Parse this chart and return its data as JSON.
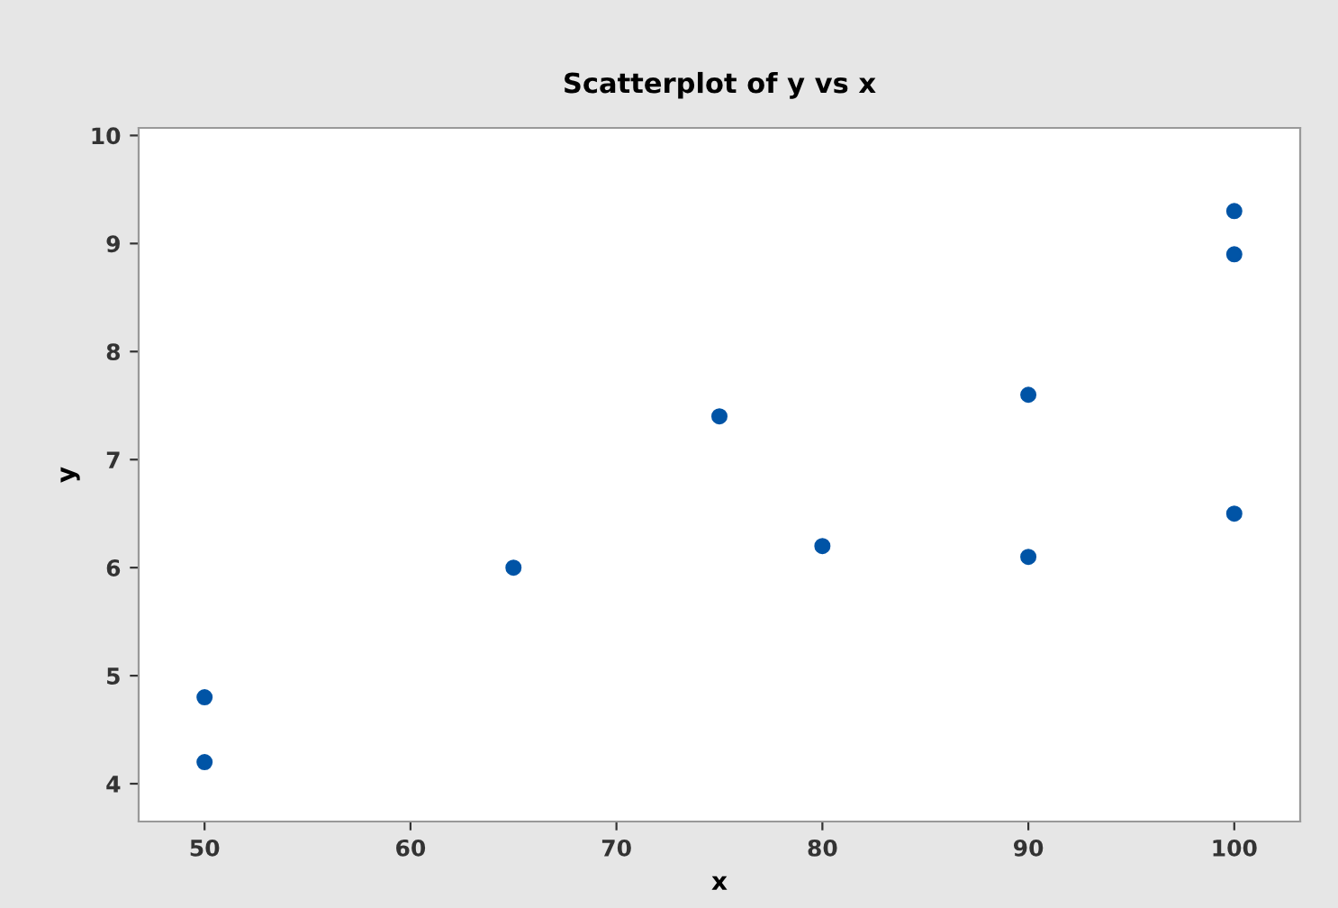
{
  "chart_data": {
    "type": "scatter",
    "title": "Scatterplot of y vs x",
    "xlabel": "x",
    "ylabel": "y",
    "x": [
      50,
      50,
      65,
      75,
      80,
      90,
      90,
      100,
      100,
      100
    ],
    "values": [
      4.8,
      4.2,
      6.0,
      7.4,
      6.2,
      7.6,
      6.1,
      9.3,
      8.9,
      6.5
    ],
    "color": "#0054a6",
    "marker": "circle",
    "xlim": [
      46.8,
      103.2
    ],
    "xticks": [
      50,
      60,
      70,
      80,
      90,
      100
    ],
    "ylim": [
      3.65,
      10.07
    ],
    "yticks": [
      4,
      5,
      6,
      7,
      8,
      9,
      10
    ],
    "grid": false
  }
}
